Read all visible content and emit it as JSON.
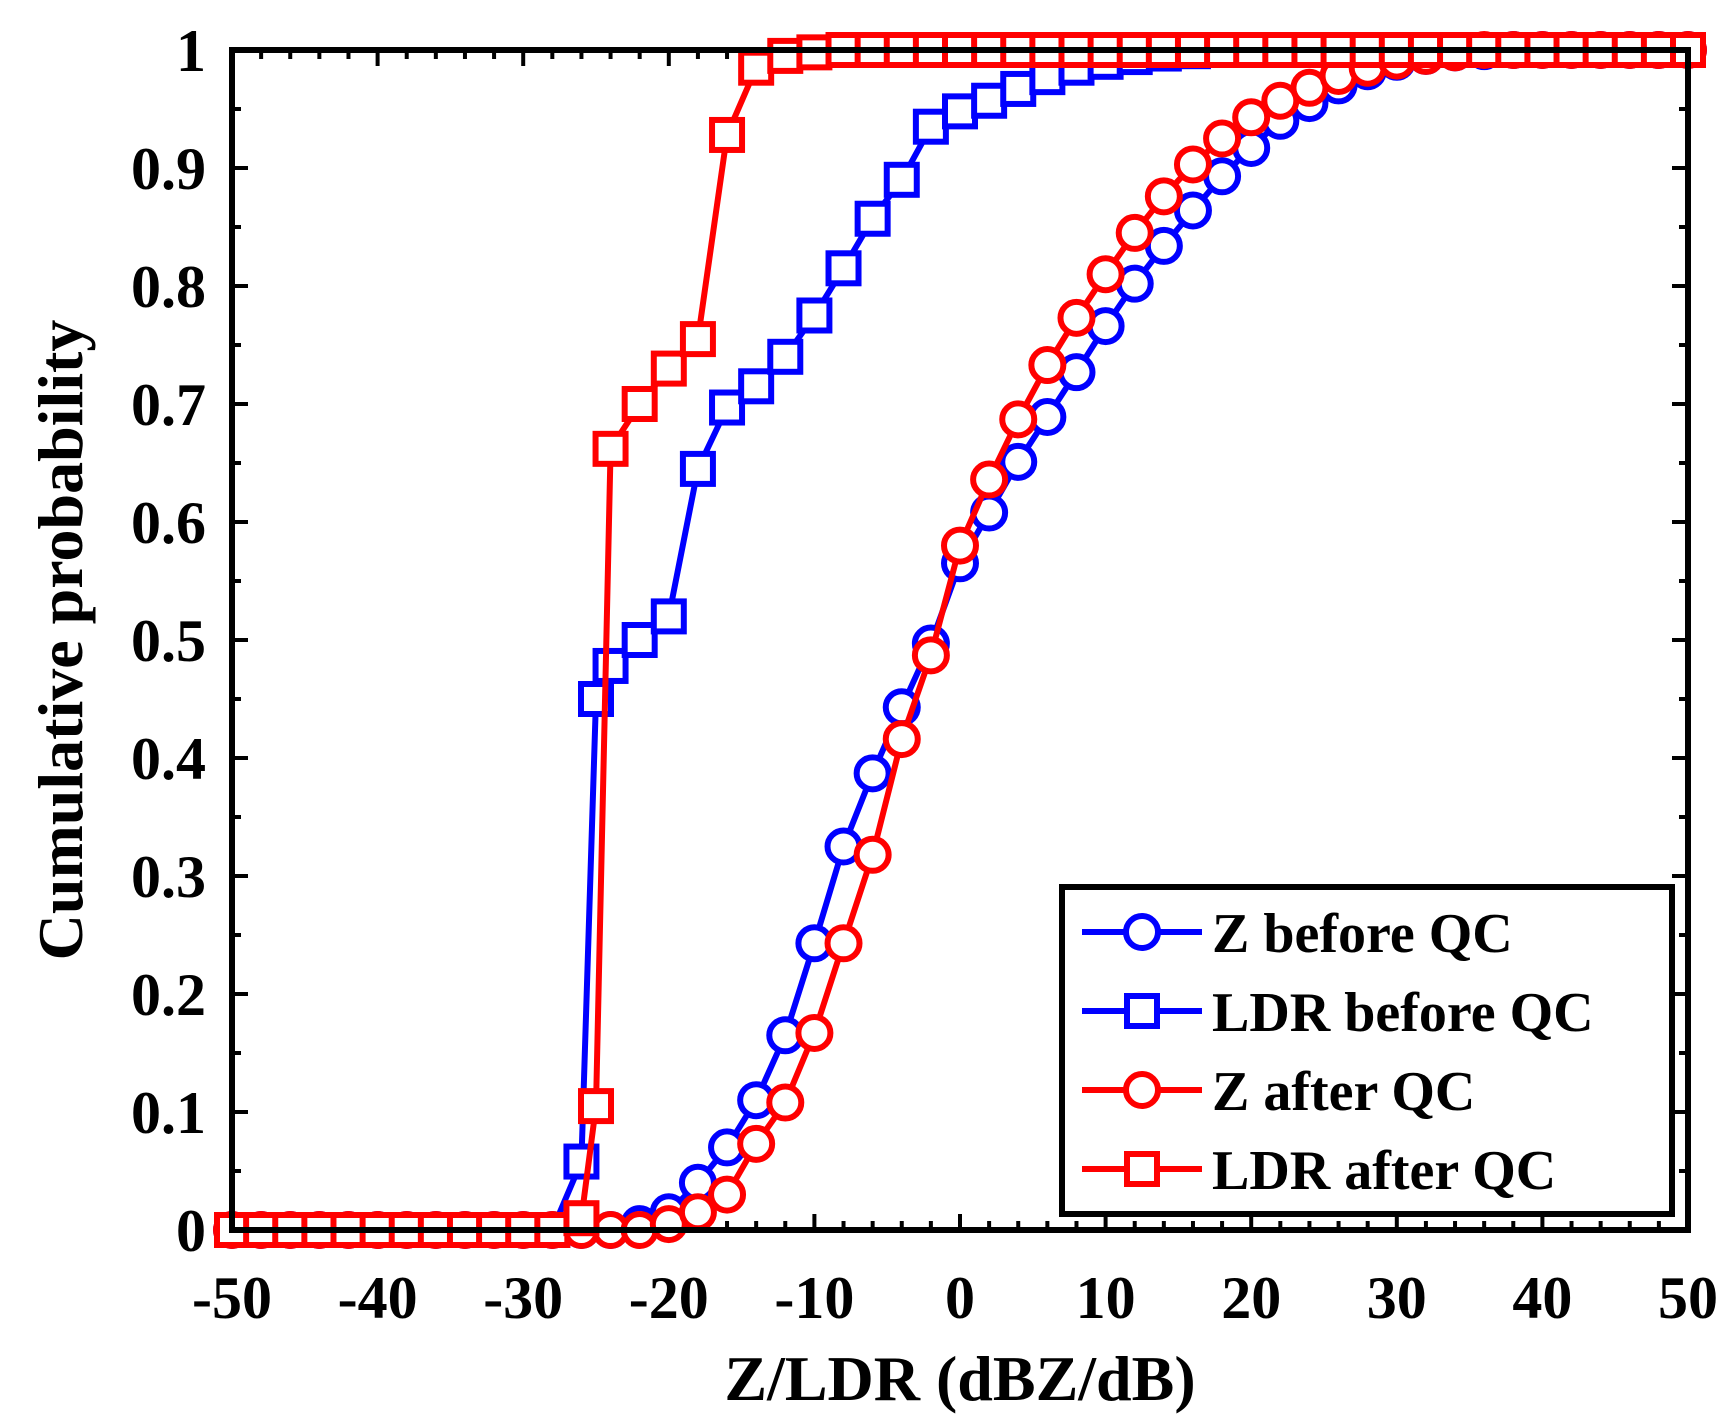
{
  "chart_data": {
    "type": "line",
    "title": "",
    "xlabel": "Z/LDR (dBZ/dB)",
    "ylabel": "Cumulative probability",
    "xlim": [
      -50,
      50
    ],
    "ylim": [
      0,
      1
    ],
    "xticks": [
      -50,
      -40,
      -30,
      -20,
      -10,
      0,
      10,
      20,
      30,
      40,
      50
    ],
    "xtick_labels": [
      "-50",
      "-40",
      "-30",
      "-20",
      "-10",
      "0",
      "10",
      "20",
      "30",
      "40",
      "50"
    ],
    "yticks": [
      0,
      0.1,
      0.2,
      0.3,
      0.4,
      0.5,
      0.6,
      0.7,
      0.8,
      0.9,
      1
    ],
    "ytick_labels": [
      "0",
      "0.1",
      "0.2",
      "0.3",
      "0.4",
      "0.5",
      "0.6",
      "0.7",
      "0.8",
      "0.9",
      "1"
    ],
    "grid": false,
    "legend_position": "bottom-right",
    "series": [
      {
        "name": "Z before QC",
        "color": "#0000ff",
        "marker": "circle",
        "x": [
          -50,
          -48,
          -46,
          -44,
          -42,
          -40,
          -38,
          -36,
          -34,
          -32,
          -30,
          -28,
          -26,
          -24,
          -22,
          -20,
          -18,
          -16,
          -14,
          -12,
          -10,
          -8,
          -6,
          -4,
          -2,
          0,
          2,
          4,
          6,
          8,
          10,
          12,
          14,
          16,
          18,
          20,
          22,
          24,
          26,
          28,
          30,
          32,
          34,
          36,
          38,
          40,
          42,
          44,
          46,
          48,
          50
        ],
        "y": [
          0,
          0,
          0,
          0,
          0,
          0,
          0,
          0,
          0,
          0,
          0,
          0,
          0,
          0,
          0.005,
          0.015,
          0.04,
          0.07,
          0.11,
          0.165,
          0.243,
          0.325,
          0.387,
          0.443,
          0.497,
          0.565,
          0.608,
          0.651,
          0.689,
          0.727,
          0.766,
          0.802,
          0.834,
          0.864,
          0.893,
          0.917,
          0.94,
          0.955,
          0.97,
          0.982,
          0.99,
          0.995,
          0.998,
          0.999,
          1,
          1,
          1,
          1,
          1,
          1,
          1
        ]
      },
      {
        "name": "LDR before QC",
        "color": "#0000ff",
        "marker": "square",
        "x": [
          -50,
          -48,
          -46,
          -44,
          -42,
          -40,
          -38,
          -36,
          -34,
          -32,
          -30,
          -28,
          -26,
          -25,
          -24,
          -22,
          -20,
          -18,
          -16,
          -14,
          -12,
          -10,
          -8,
          -6,
          -4,
          -2,
          0,
          2,
          4,
          6,
          8,
          10,
          12,
          14,
          16,
          18,
          20,
          22,
          24,
          26,
          28,
          30,
          32,
          34,
          36,
          38,
          40,
          42,
          44,
          46,
          48,
          50
        ],
        "y": [
          0,
          0,
          0,
          0,
          0,
          0,
          0,
          0,
          0,
          0,
          0,
          0,
          0.058,
          0.45,
          0.478,
          0.5,
          0.52,
          0.645,
          0.697,
          0.715,
          0.74,
          0.775,
          0.815,
          0.857,
          0.89,
          0.935,
          0.948,
          0.957,
          0.967,
          0.977,
          0.985,
          0.99,
          0.994,
          0.997,
          0.999,
          1,
          1,
          1,
          1,
          1,
          1,
          1,
          1,
          1,
          1,
          1,
          1,
          1,
          1,
          1,
          1,
          1
        ]
      },
      {
        "name": "Z after QC",
        "color": "#ff0000",
        "marker": "circle",
        "x": [
          -50,
          -48,
          -46,
          -44,
          -42,
          -40,
          -38,
          -36,
          -34,
          -32,
          -30,
          -28,
          -26,
          -24,
          -22,
          -20,
          -18,
          -16,
          -14,
          -12,
          -10,
          -8,
          -6,
          -4,
          -2,
          0,
          2,
          4,
          6,
          8,
          10,
          12,
          14,
          16,
          18,
          20,
          22,
          24,
          26,
          28,
          30,
          32,
          34,
          36,
          38,
          40,
          42,
          44,
          46,
          48,
          50
        ],
        "y": [
          0,
          0,
          0,
          0,
          0,
          0,
          0,
          0,
          0,
          0,
          0,
          0,
          0,
          0,
          0,
          0.005,
          0.015,
          0.03,
          0.073,
          0.108,
          0.167,
          0.243,
          0.318,
          0.416,
          0.487,
          0.58,
          0.636,
          0.687,
          0.733,
          0.773,
          0.81,
          0.845,
          0.876,
          0.903,
          0.925,
          0.943,
          0.957,
          0.968,
          0.978,
          0.985,
          0.991,
          0.995,
          0.998,
          1,
          1,
          1,
          1,
          1,
          1,
          1,
          1
        ]
      },
      {
        "name": "LDR after QC",
        "color": "#ff0000",
        "marker": "square",
        "x": [
          -50,
          -48,
          -46,
          -44,
          -42,
          -40,
          -38,
          -36,
          -34,
          -32,
          -30,
          -28,
          -26,
          -25,
          -24,
          -22,
          -20,
          -18,
          -16,
          -14,
          -12,
          -10,
          -8,
          -6,
          -4,
          -2,
          0,
          2,
          4,
          6,
          8,
          10,
          12,
          14,
          16,
          18,
          20,
          22,
          24,
          26,
          28,
          30,
          32,
          34,
          36,
          38,
          40,
          42,
          44,
          46,
          48,
          50
        ],
        "y": [
          0,
          0,
          0,
          0,
          0,
          0,
          0,
          0,
          0,
          0,
          0,
          0,
          0.01,
          0.105,
          0.662,
          0.7,
          0.73,
          0.755,
          0.928,
          0.985,
          0.995,
          0.998,
          1,
          1,
          1,
          1,
          1,
          1,
          1,
          1,
          1,
          1,
          1,
          1,
          1,
          1,
          1,
          1,
          1,
          1,
          1,
          1,
          1,
          1,
          1,
          1,
          1,
          1,
          1,
          1,
          1,
          1
        ]
      }
    ]
  }
}
